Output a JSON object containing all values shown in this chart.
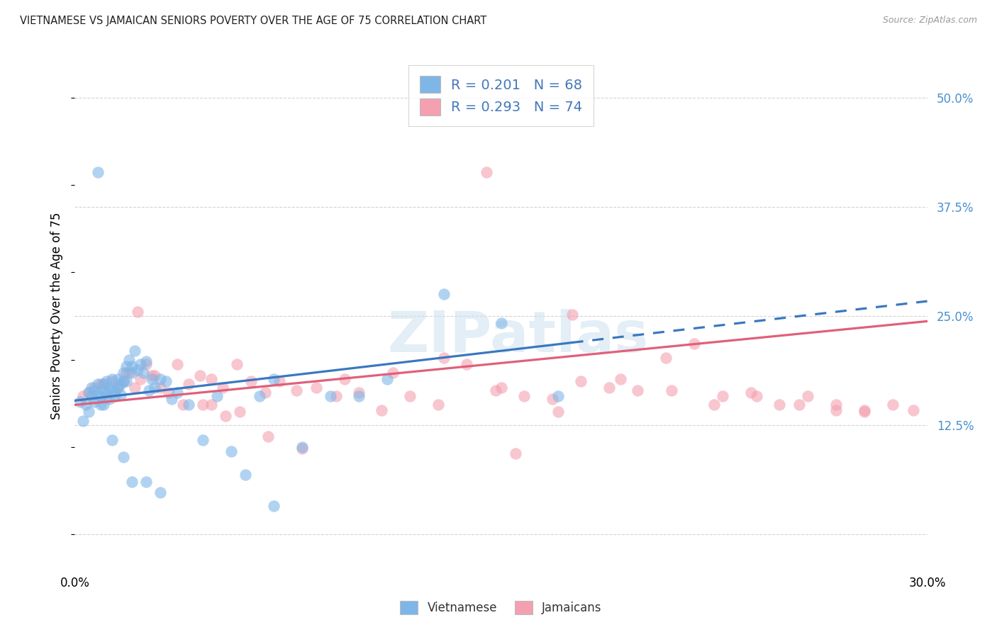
{
  "title": "VIETNAMESE VS JAMAICAN SENIORS POVERTY OVER THE AGE OF 75 CORRELATION CHART",
  "source": "Source: ZipAtlas.com",
  "ylabel": "Seniors Poverty Over the Age of 75",
  "xlim": [
    0.0,
    0.3
  ],
  "ylim": [
    -0.04,
    0.54
  ],
  "yticks": [
    0.0,
    0.125,
    0.25,
    0.375,
    0.5
  ],
  "ytick_labels": [
    "",
    "12.5%",
    "25.0%",
    "37.5%",
    "50.0%"
  ],
  "grid_color": "#cccccc",
  "viet_color": "#7eb6e8",
  "jam_color": "#f4a0b0",
  "viet_line_color": "#3a78c0",
  "jam_line_color": "#e0607a",
  "viet_R": 0.201,
  "viet_N": 68,
  "jam_R": 0.293,
  "jam_N": 74,
  "background_color": "#ffffff",
  "watermark": "ZIPatlas",
  "legend1_label1": "R = 0.201   N = 68",
  "legend1_label2": "R = 0.293   N = 74",
  "legend2_label1": "Vietnamese",
  "legend2_label2": "Jamaicans",
  "viet_x": [
    0.002,
    0.003,
    0.004,
    0.005,
    0.005,
    0.006,
    0.006,
    0.007,
    0.007,
    0.008,
    0.008,
    0.009,
    0.009,
    0.01,
    0.01,
    0.011,
    0.011,
    0.012,
    0.012,
    0.013,
    0.013,
    0.014,
    0.014,
    0.015,
    0.015,
    0.016,
    0.016,
    0.017,
    0.017,
    0.018,
    0.018,
    0.019,
    0.02,
    0.02,
    0.021,
    0.022,
    0.023,
    0.024,
    0.025,
    0.026,
    0.027,
    0.028,
    0.03,
    0.032,
    0.034,
    0.036,
    0.04,
    0.045,
    0.05,
    0.055,
    0.06,
    0.065,
    0.07,
    0.08,
    0.09,
    0.1,
    0.11,
    0.13,
    0.15,
    0.17,
    0.008,
    0.01,
    0.013,
    0.017,
    0.02,
    0.025,
    0.03,
    0.07
  ],
  "viet_y": [
    0.152,
    0.13,
    0.148,
    0.14,
    0.162,
    0.158,
    0.168,
    0.152,
    0.165,
    0.16,
    0.172,
    0.158,
    0.148,
    0.165,
    0.172,
    0.162,
    0.175,
    0.155,
    0.168,
    0.165,
    0.178,
    0.158,
    0.165,
    0.168,
    0.178,
    0.172,
    0.16,
    0.175,
    0.185,
    0.175,
    0.192,
    0.2,
    0.192,
    0.185,
    0.21,
    0.188,
    0.195,
    0.185,
    0.198,
    0.165,
    0.178,
    0.168,
    0.178,
    0.175,
    0.155,
    0.162,
    0.148,
    0.108,
    0.158,
    0.095,
    0.068,
    0.158,
    0.178,
    0.1,
    0.158,
    0.158,
    0.178,
    0.275,
    0.242,
    0.158,
    0.415,
    0.148,
    0.108,
    0.088,
    0.06,
    0.06,
    0.048,
    0.032
  ],
  "jam_x": [
    0.003,
    0.005,
    0.007,
    0.009,
    0.011,
    0.013,
    0.015,
    0.017,
    0.019,
    0.021,
    0.023,
    0.025,
    0.027,
    0.03,
    0.033,
    0.036,
    0.04,
    0.044,
    0.048,
    0.052,
    0.057,
    0.062,
    0.067,
    0.072,
    0.078,
    0.085,
    0.092,
    0.1,
    0.108,
    0.118,
    0.128,
    0.138,
    0.148,
    0.158,
    0.168,
    0.178,
    0.188,
    0.198,
    0.208,
    0.218,
    0.228,
    0.238,
    0.248,
    0.258,
    0.268,
    0.278,
    0.288,
    0.295,
    0.01,
    0.018,
    0.028,
    0.038,
    0.048,
    0.058,
    0.068,
    0.08,
    0.095,
    0.112,
    0.13,
    0.15,
    0.17,
    0.192,
    0.21,
    0.225,
    0.24,
    0.255,
    0.268,
    0.278,
    0.022,
    0.045,
    0.155,
    0.175,
    0.053,
    0.145
  ],
  "jam_y": [
    0.158,
    0.162,
    0.168,
    0.172,
    0.158,
    0.175,
    0.168,
    0.175,
    0.185,
    0.168,
    0.178,
    0.195,
    0.182,
    0.168,
    0.162,
    0.195,
    0.172,
    0.182,
    0.178,
    0.168,
    0.195,
    0.175,
    0.162,
    0.175,
    0.165,
    0.168,
    0.158,
    0.162,
    0.142,
    0.158,
    0.148,
    0.195,
    0.165,
    0.158,
    0.155,
    0.175,
    0.168,
    0.165,
    0.202,
    0.218,
    0.158,
    0.162,
    0.148,
    0.158,
    0.148,
    0.142,
    0.148,
    0.142,
    0.172,
    0.185,
    0.182,
    0.148,
    0.148,
    0.14,
    0.112,
    0.098,
    0.178,
    0.185,
    0.202,
    0.168,
    0.14,
    0.178,
    0.165,
    0.148,
    0.158,
    0.148,
    0.142,
    0.14,
    0.255,
    0.148,
    0.092,
    0.252,
    0.135,
    0.415
  ]
}
